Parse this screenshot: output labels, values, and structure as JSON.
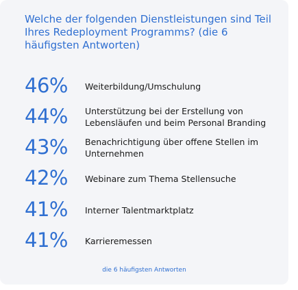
{
  "title": "Welche der folgenden Dienstleistungen sind Teil Ihres Redeployment Programms? (die 6 häufigsten Antworten)",
  "footnote": "die 6 häufigsten Antworten",
  "colors": {
    "accent": "#2f6fd1",
    "background": "#f4f5f8",
    "text": "#1a1a1a"
  },
  "chart_data": {
    "type": "table",
    "title": "Welche der folgenden Dienstleistungen sind Teil Ihres Redeployment Programms? (die 6 häufigsten Antworten)",
    "unit": "%",
    "rows": [
      {
        "value": 46,
        "value_label": "46%",
        "label": "Weiterbildung/Umschulung"
      },
      {
        "value": 44,
        "value_label": "44%",
        "label": "Unterstützung bei der Erstellung von Lebensläufen und beim Personal Branding"
      },
      {
        "value": 43,
        "value_label": "43%",
        "label": "Benachrichtigung über offene Stellen im Unternehmen"
      },
      {
        "value": 42,
        "value_label": "42%",
        "label": "Webinare zum Thema Stellensuche"
      },
      {
        "value": 41,
        "value_label": "41%",
        "label": "Interner Talentmarktplatz"
      },
      {
        "value": 41,
        "value_label": "41%",
        "label": "Karrieremessen"
      }
    ]
  }
}
